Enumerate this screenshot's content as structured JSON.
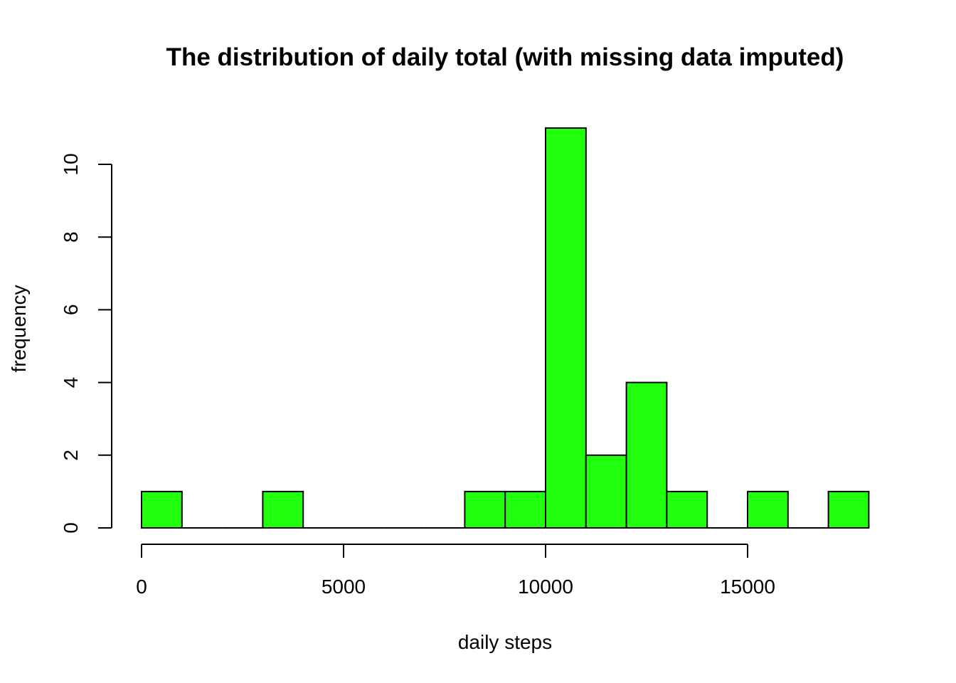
{
  "chart_data": {
    "type": "bar",
    "title": "The distribution of daily total (with missing data imputed)",
    "xlabel": "daily steps",
    "ylabel": "frequency",
    "bar_color": "#22ff0e",
    "bin_width": 1000,
    "bin_starts": [
      0,
      1000,
      2000,
      3000,
      4000,
      5000,
      6000,
      7000,
      8000,
      9000,
      10000,
      11000,
      12000,
      13000,
      14000,
      15000,
      16000,
      17000
    ],
    "values": [
      1,
      0,
      0,
      1,
      0,
      0,
      0,
      0,
      1,
      1,
      11,
      2,
      4,
      1,
      0,
      1,
      0,
      1
    ],
    "xlim": [
      0,
      18000
    ],
    "ylim": [
      0,
      11
    ],
    "x_ticks": [
      0,
      5000,
      10000,
      15000
    ],
    "x_tick_labels": [
      "0",
      "5000",
      "10000",
      "15000"
    ],
    "y_ticks": [
      0,
      2,
      4,
      6,
      8,
      10
    ],
    "y_tick_labels": [
      "0",
      "2",
      "4",
      "6",
      "8",
      "10"
    ]
  }
}
